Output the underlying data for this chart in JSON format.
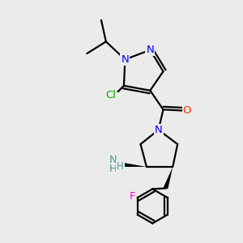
{
  "bg_color": "#ebebeb",
  "atom_colors": {
    "N": "#0000ff",
    "O": "#ff2200",
    "Cl": "#00aa00",
    "F": "#ff00cc",
    "NH_teal": "#4a9a9a",
    "C": "#000000"
  },
  "bond_color": "#000000",
  "bond_width": 1.6,
  "font_size_atom": 9.5
}
